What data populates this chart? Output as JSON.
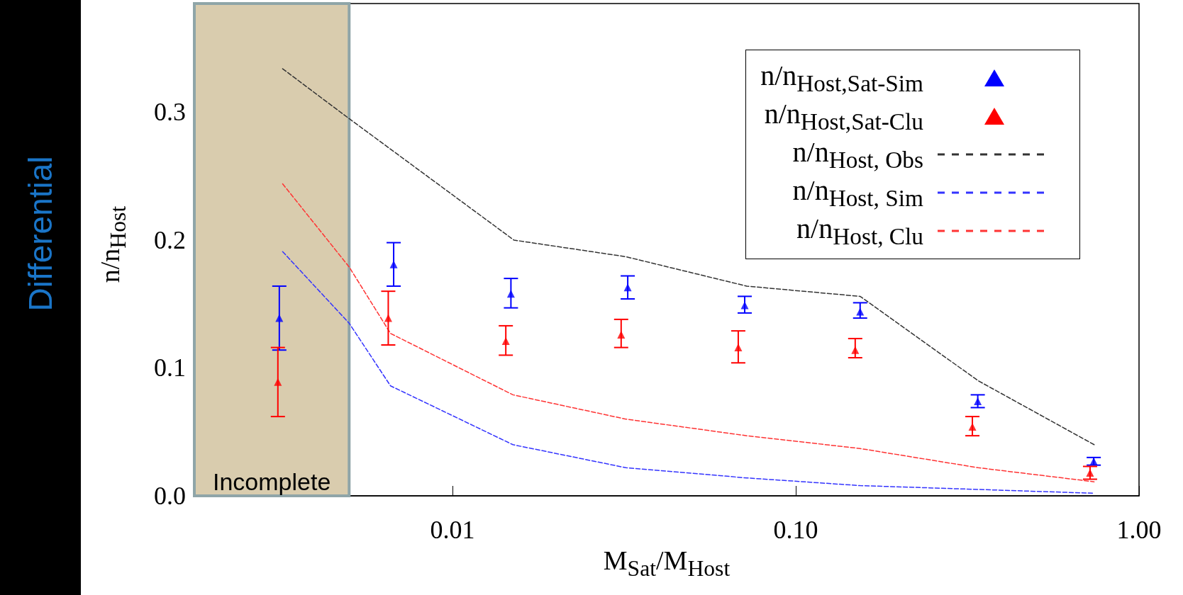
{
  "chart_data": {
    "type": "scatter",
    "xlabel": "M$_{Sat}$/M$_{Host}$",
    "ylabel": "n/n$_{Host}$",
    "annotations": [
      "Differential"
    ],
    "log": "x",
    "xlim": [
      0.00177,
      1
    ],
    "ylim": [
      0,
      0.385
    ],
    "xticks": [
      {
        "value": 0.01,
        "label": "0.01"
      },
      {
        "value": 0.1,
        "label": "0.10"
      },
      {
        "value": 1,
        "label": "1.00"
      }
    ],
    "yticks": [
      {
        "value": 0,
        "label": "0.0"
      },
      {
        "value": 0.1,
        "label": "0.1"
      },
      {
        "value": 0.2,
        "label": "0.2"
      },
      {
        "value": 0.3,
        "label": "0.3"
      }
    ],
    "grid": false,
    "legend": "top right",
    "bands": [
      {
        "axis": "x",
        "from": 0.00177,
        "to": 0.005,
        "label": "Incomplete",
        "color": "#d9ccae"
      }
    ],
    "series": [
      {
        "name": "n/n$_{Host,Sat-Sim}$",
        "marker": "triangle",
        "color": "#0000ff",
        "x": [
          0.00313,
          0.00674,
          0.0148,
          0.0324,
          0.071,
          0.154,
          0.339,
          0.738
        ],
        "values": [
          0.139,
          0.181,
          0.158,
          0.163,
          0.149,
          0.144,
          0.074,
          0.027
        ],
        "errors": [
          [
            0.114,
            0.164
          ],
          [
            0.164,
            0.198
          ],
          [
            0.147,
            0.17
          ],
          [
            0.154,
            0.172
          ],
          [
            0.143,
            0.156
          ],
          [
            0.139,
            0.151
          ],
          [
            0.069,
            0.079
          ],
          [
            0.024,
            0.03
          ]
        ]
      },
      {
        "name": "n/n$_{Host,Sat-Clu}$",
        "marker": "triangle",
        "color": "#ff0000",
        "x": [
          0.0031,
          0.0065,
          0.0143,
          0.031,
          0.068,
          0.149,
          0.327,
          0.72
        ],
        "values": [
          0.089,
          0.139,
          0.121,
          0.126,
          0.116,
          0.114,
          0.054,
          0.018
        ],
        "errors": [
          [
            0.062,
            0.116
          ],
          [
            0.118,
            0.16
          ],
          [
            0.11,
            0.133
          ],
          [
            0.116,
            0.138
          ],
          [
            0.104,
            0.129
          ],
          [
            0.108,
            0.123
          ],
          [
            0.047,
            0.062
          ],
          [
            0.013,
            0.023
          ]
        ]
      },
      {
        "name": "n/n$_{Host, Obs}$",
        "type": "line",
        "line_style": "dashed",
        "marker": "none",
        "color": "#333333",
        "x": [
          0.0032,
          0.005,
          0.0151,
          0.032,
          0.072,
          0.154,
          0.34,
          0.74
        ],
        "values": [
          0.334,
          0.295,
          0.2,
          0.187,
          0.164,
          0.156,
          0.09,
          0.04
        ]
      },
      {
        "name": "n/n$_{Host, Sim}$",
        "type": "line",
        "line_style": "dashed",
        "marker": "none",
        "color": "#3333ff",
        "x": [
          0.0032,
          0.005,
          0.0066,
          0.015,
          0.032,
          0.072,
          0.154,
          0.34,
          0.74
        ],
        "values": [
          0.191,
          0.135,
          0.086,
          0.04,
          0.022,
          0.014,
          0.008,
          0.005,
          0.002
        ]
      },
      {
        "name": "n/n$_{Host, Clu}$",
        "type": "line",
        "line_style": "dashed",
        "marker": "none",
        "color": "#ff3333",
        "x": [
          0.0032,
          0.005,
          0.0066,
          0.015,
          0.032,
          0.072,
          0.154,
          0.34,
          0.74
        ],
        "values": [
          0.244,
          0.179,
          0.127,
          0.079,
          0.06,
          0.047,
          0.037,
          0.022,
          0.011
        ]
      }
    ]
  }
}
